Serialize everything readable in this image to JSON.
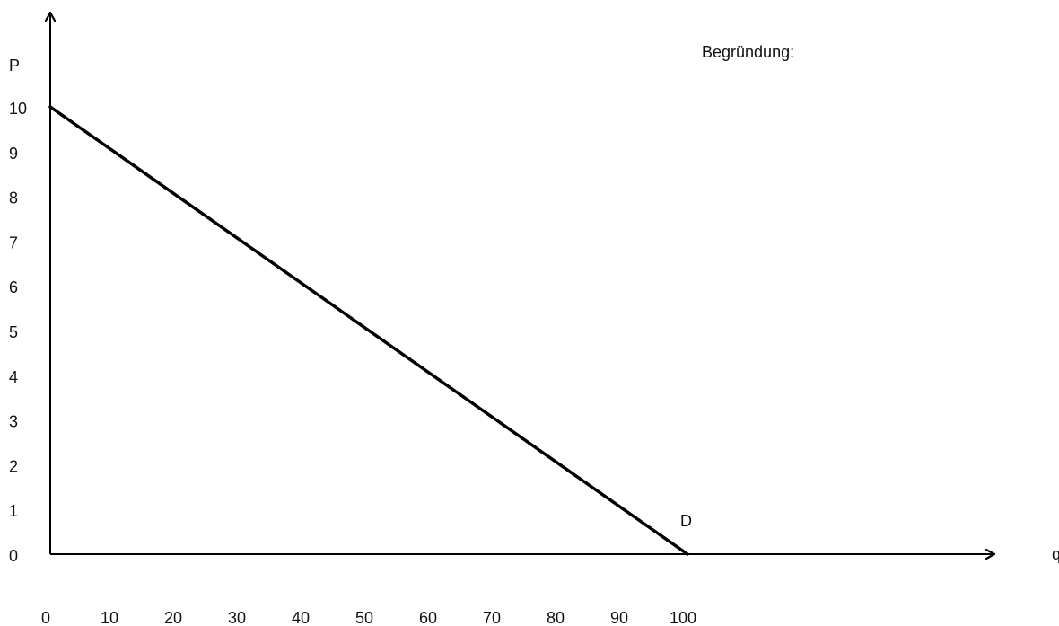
{
  "chart_data": {
    "type": "line",
    "xlabel": "q",
    "ylabel": "P",
    "x_ticks": [
      0,
      10,
      20,
      30,
      40,
      50,
      60,
      70,
      80,
      90,
      100
    ],
    "y_ticks": [
      0,
      1,
      2,
      3,
      4,
      5,
      6,
      7,
      8,
      9,
      10
    ],
    "xlim": [
      0,
      100
    ],
    "ylim": [
      0,
      10
    ],
    "grid": false,
    "series": [
      {
        "name": "D",
        "color": "#000000",
        "x": [
          0,
          100
        ],
        "y": [
          10,
          0
        ]
      }
    ],
    "annotations": [
      {
        "text": "D",
        "x": 100,
        "y": 0
      }
    ]
  },
  "note": {
    "text": "Begründung:"
  }
}
